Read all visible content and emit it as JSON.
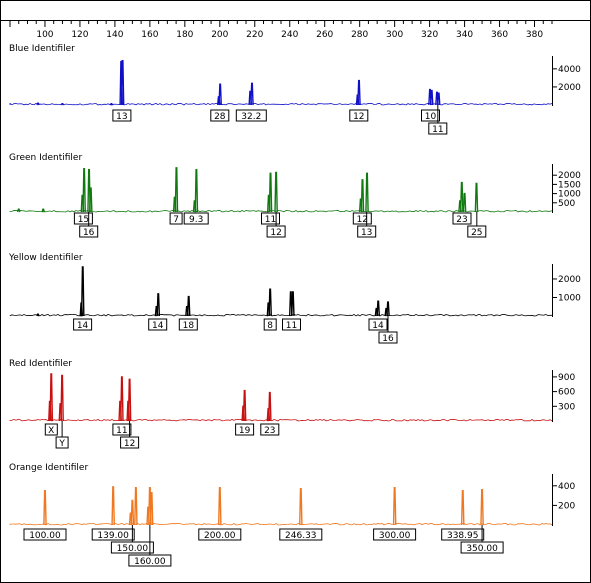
{
  "chart_data": {
    "type": "line",
    "x_axis": {
      "min": 80,
      "max": 390,
      "ticks": [
        100,
        120,
        140,
        160,
        180,
        200,
        220,
        240,
        260,
        280,
        300,
        320,
        340,
        360,
        380
      ]
    },
    "panels": [
      {
        "name": "Blue  Identifiler",
        "color": "#1010c8",
        "y_ticks": [
          {
            "label": "4000",
            "value": 4000
          },
          {
            "label": "2000",
            "value": 2000
          }
        ],
        "y_max": 5200,
        "peaks": [
          [
            143.6,
            4800
          ],
          [
            144.4,
            4900
          ],
          [
            200.2,
            2300
          ],
          [
            199.4,
            900
          ],
          [
            218.4,
            2400
          ],
          [
            217.4,
            1500
          ],
          [
            279.6,
            2700
          ],
          [
            278.8,
            1100
          ],
          [
            320.2,
            1700
          ],
          [
            321.2,
            1600
          ],
          [
            324.2,
            1400
          ],
          [
            325.2,
            1300
          ],
          [
            96.0,
            200
          ],
          [
            110.0,
            150
          ],
          [
            138.0,
            150
          ]
        ],
        "alleles": [
          {
            "label": "13",
            "x": 144.0,
            "row": 0
          },
          {
            "label": "28",
            "x": 200.0,
            "row": 0
          },
          {
            "label": "32.2",
            "x": 218.0,
            "row": 0
          },
          {
            "label": "12",
            "x": 279.5,
            "row": 0
          },
          {
            "label": "10",
            "x": 320.5,
            "row": 0
          },
          {
            "label": "11",
            "x": 324.7,
            "row": 1
          }
        ]
      },
      {
        "name": "Green  Identifiler",
        "color": "#107a10",
        "y_ticks": [
          {
            "label": "2000",
            "value": 2000
          },
          {
            "label": "1500",
            "value": 1500
          },
          {
            "label": "1000",
            "value": 1000
          },
          {
            "label": "500",
            "value": 500
          }
        ],
        "y_max": 2500,
        "peaks": [
          [
            122.4,
            2350
          ],
          [
            121.4,
            900
          ],
          [
            125.2,
            2300
          ],
          [
            126.2,
            1300
          ],
          [
            175.2,
            2400
          ],
          [
            174.2,
            800
          ],
          [
            186.6,
            2300
          ],
          [
            185.6,
            600
          ],
          [
            229.0,
            2100
          ],
          [
            232.2,
            2150
          ],
          [
            228.0,
            900
          ],
          [
            281.6,
            1750
          ],
          [
            284.2,
            2100
          ],
          [
            280.6,
            700
          ],
          [
            338.4,
            1600
          ],
          [
            346.8,
            1550
          ],
          [
            337.4,
            600
          ],
          [
            340.0,
            1000
          ],
          [
            85.0,
            150
          ],
          [
            99.0,
            150
          ]
        ],
        "alleles": [
          {
            "label": "15",
            "x": 122.0,
            "row": 0
          },
          {
            "label": "16",
            "x": 125.0,
            "row": 1
          },
          {
            "label": "7",
            "x": 175.0,
            "row": 0
          },
          {
            "label": "9.3",
            "x": 186.5,
            "row": 0
          },
          {
            "label": "11",
            "x": 229.0,
            "row": 0
          },
          {
            "label": "12",
            "x": 232.2,
            "row": 1
          },
          {
            "label": "12",
            "x": 281.5,
            "row": 0
          },
          {
            "label": "13",
            "x": 284.0,
            "row": 1
          },
          {
            "label": "23",
            "x": 338.5,
            "row": 0
          },
          {
            "label": "25",
            "x": 347.0,
            "row": 1
          }
        ]
      },
      {
        "name": "Yellow  Identifiler",
        "color": "#000000",
        "y_ticks": [
          {
            "label": "2000",
            "value": 2000
          },
          {
            "label": "1000",
            "value": 1000
          }
        ],
        "y_max": 2700,
        "peaks": [
          [
            121.6,
            2650
          ],
          [
            120.8,
            700
          ],
          [
            164.8,
            1200
          ],
          [
            163.8,
            500
          ],
          [
            182.2,
            1050
          ],
          [
            181.2,
            500
          ],
          [
            228.8,
            1450
          ],
          [
            227.8,
            700
          ],
          [
            240.6,
            1300
          ],
          [
            241.8,
            1300
          ],
          [
            290.6,
            800
          ],
          [
            296.2,
            750
          ],
          [
            289.6,
            400
          ],
          [
            295.2,
            400
          ],
          [
            96.0,
            100
          ]
        ],
        "alleles": [
          {
            "label": "14",
            "x": 121.5,
            "row": 0
          },
          {
            "label": "14",
            "x": 164.5,
            "row": 0
          },
          {
            "label": "18",
            "x": 182.0,
            "row": 0
          },
          {
            "label": "8",
            "x": 228.8,
            "row": 0
          },
          {
            "label": "11",
            "x": 241.0,
            "row": 0
          },
          {
            "label": "14",
            "x": 290.5,
            "row": 0
          },
          {
            "label": "16",
            "x": 296.2,
            "row": 1
          }
        ]
      },
      {
        "name": "Red   Identifiler",
        "color": "#c81010",
        "y_ticks": [
          {
            "label": "900",
            "value": 900
          },
          {
            "label": "600",
            "value": 600
          },
          {
            "label": "300",
            "value": 300
          }
        ],
        "y_max": 1000,
        "peaks": [
          [
            103.6,
            960
          ],
          [
            102.8,
            400
          ],
          [
            109.8,
            930
          ],
          [
            108.8,
            350
          ],
          [
            144.0,
            900
          ],
          [
            143.0,
            400
          ],
          [
            148.4,
            850
          ],
          [
            147.6,
            400
          ],
          [
            214.2,
            620
          ],
          [
            213.4,
            300
          ],
          [
            228.6,
            580
          ],
          [
            227.8,
            250
          ]
        ],
        "alleles": [
          {
            "label": "X",
            "x": 103.6,
            "row": 0
          },
          {
            "label": "Y",
            "x": 109.8,
            "row": 1
          },
          {
            "label": "11",
            "x": 144.0,
            "row": 0
          },
          {
            "label": "12",
            "x": 148.4,
            "row": 1
          },
          {
            "label": "19",
            "x": 214.2,
            "row": 0
          },
          {
            "label": "23",
            "x": 228.6,
            "row": 0
          }
        ]
      },
      {
        "name": "Orange  Identifiler",
        "color": "#f07820",
        "y_ticks": [
          {
            "label": "400",
            "value": 400
          },
          {
            "label": "200",
            "value": 200
          }
        ],
        "y_max": 500,
        "peaks": [
          [
            100.0,
            350
          ],
          [
            139.0,
            390
          ],
          [
            150.0,
            250
          ],
          [
            160.0,
            380
          ],
          [
            200.0,
            380
          ],
          [
            246.33,
            370
          ],
          [
            300.0,
            380
          ],
          [
            338.95,
            350
          ],
          [
            350.0,
            360
          ],
          [
            149.0,
            120
          ],
          [
            159.0,
            180
          ],
          [
            161.0,
            330
          ],
          [
            152.0,
            380
          ]
        ],
        "alleles": [
          {
            "label": "100.00",
            "x": 100.0,
            "row": 0
          },
          {
            "label": "139.00",
            "x": 139.0,
            "row": 0
          },
          {
            "label": "150.00",
            "x": 150.0,
            "row": 1
          },
          {
            "label": "160.00",
            "x": 160.0,
            "row": 2
          },
          {
            "label": "200.00",
            "x": 200.0,
            "row": 0
          },
          {
            "label": "246.33",
            "x": 246.33,
            "row": 0
          },
          {
            "label": "300.00",
            "x": 300.0,
            "row": 0
          },
          {
            "label": "338.95",
            "x": 338.95,
            "row": 0
          },
          {
            "label": "350.00",
            "x": 350.0,
            "row": 1
          }
        ]
      }
    ]
  }
}
